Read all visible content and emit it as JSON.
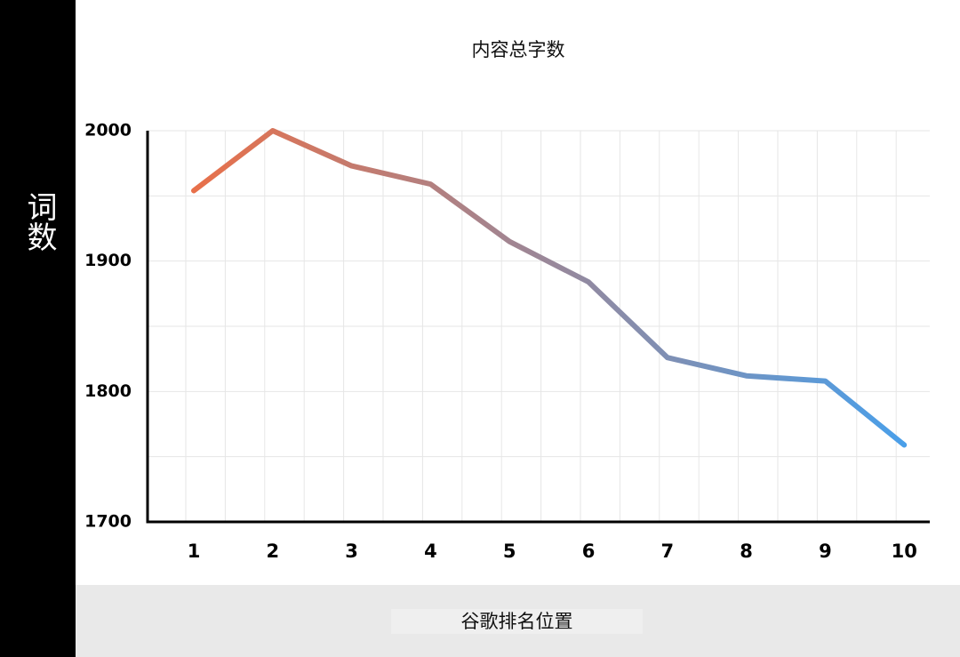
{
  "chart_data": {
    "type": "line",
    "title": "内容总字数",
    "y_label": "词数",
    "x_label": "谷歌排名位置",
    "categories": [
      "1",
      "2",
      "3",
      "4",
      "5",
      "6",
      "7",
      "8",
      "9",
      "10"
    ],
    "values": [
      1954,
      2000,
      1973,
      1959,
      1915,
      1884,
      1826,
      1812,
      1808,
      1759
    ],
    "colors": [
      "#e8704a",
      "#4a9fe9"
    ],
    "ylim": [
      1700,
      2000
    ],
    "yticks": [
      1700,
      1800,
      1900,
      2000
    ],
    "grid": true
  }
}
